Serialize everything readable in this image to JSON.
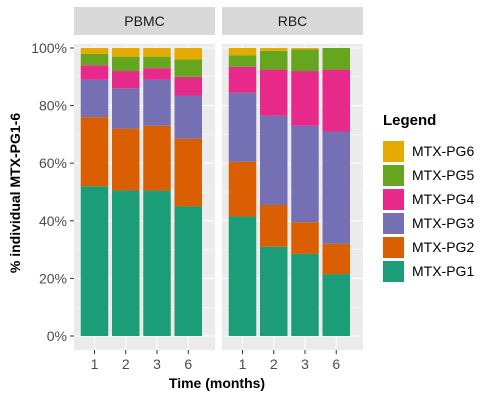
{
  "chart_data": {
    "type": "bar",
    "stacked": true,
    "ylabel": "% individual MTX-PG1-6",
    "xlabel": "Time (months)",
    "ylim": [
      0,
      100
    ],
    "yticks": [
      "0%",
      "20%",
      "40%",
      "60%",
      "80%",
      "100%"
    ],
    "categories": [
      "1",
      "2",
      "3",
      "6"
    ],
    "legend": {
      "title": "Legend",
      "placement": "right",
      "entries": [
        "MTX-PG6",
        "MTX-PG5",
        "MTX-PG4",
        "MTX-PG3",
        "MTX-PG2",
        "MTX-PG1"
      ]
    },
    "colors": {
      "MTX-PG1": "#1b9e77",
      "MTX-PG2": "#d95f02",
      "MTX-PG3": "#7570b3",
      "MTX-PG4": "#e7298a",
      "MTX-PG5": "#66a61e",
      "MTX-PG6": "#e6ab02"
    },
    "panels": [
      {
        "title": "PBMC",
        "series": [
          {
            "name": "MTX-PG1",
            "values": [
              52,
              50.5,
              50.5,
              45
            ]
          },
          {
            "name": "MTX-PG2",
            "values": [
              24,
              21.5,
              22.5,
              23.5
            ]
          },
          {
            "name": "MTX-PG3",
            "values": [
              13,
              14,
              16,
              15
            ]
          },
          {
            "name": "MTX-PG4",
            "values": [
              5,
              6,
              4,
              6.5
            ]
          },
          {
            "name": "MTX-PG5",
            "values": [
              4,
              5,
              4,
              6
            ]
          },
          {
            "name": "MTX-PG6",
            "values": [
              2,
              3,
              3,
              4
            ]
          }
        ]
      },
      {
        "title": "RBC",
        "series": [
          {
            "name": "MTX-PG1",
            "values": [
              41.5,
              31,
              28.5,
              21.5
            ]
          },
          {
            "name": "MTX-PG2",
            "values": [
              19,
              14.5,
              11,
              10.5
            ]
          },
          {
            "name": "MTX-PG3",
            "values": [
              24,
              31,
              33.5,
              39
            ]
          },
          {
            "name": "MTX-PG4",
            "values": [
              9,
              16,
              19,
              21.5
            ]
          },
          {
            "name": "MTX-PG5",
            "values": [
              4,
              6.5,
              7.5,
              7.5
            ]
          },
          {
            "name": "MTX-PG6",
            "values": [
              2.5,
              1,
              0.5,
              0
            ]
          }
        ]
      }
    ]
  }
}
